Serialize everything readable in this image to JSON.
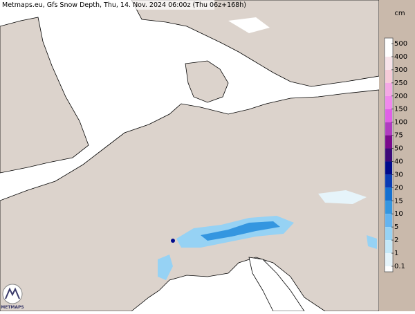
{
  "title": "Metmaps.eu, Gfs Snow Depth, Thu, 14. Nov. 2024 06:00z (Thu 06z+168h)",
  "logo": "METMAPS",
  "legend": {
    "unit": "cm",
    "levels": [
      {
        "label": "500",
        "color": "#ffffff"
      },
      {
        "label": "400",
        "color": "#f8e4ea"
      },
      {
        "label": "300",
        "color": "#f6cbd8"
      },
      {
        "label": "250",
        "color": "#f4a8e4"
      },
      {
        "label": "200",
        "color": "#f088ec"
      },
      {
        "label": "150",
        "color": "#e060e6"
      },
      {
        "label": "100",
        "color": "#b03cc0"
      },
      {
        "label": "75",
        "color": "#7a0a8c"
      },
      {
        "label": "50",
        "color": "#3c0a78"
      },
      {
        "label": "40",
        "color": "#000a8c"
      },
      {
        "label": "30",
        "color": "#0a3cb4"
      },
      {
        "label": "20",
        "color": "#1470d0"
      },
      {
        "label": "15",
        "color": "#3496e0"
      },
      {
        "label": "10",
        "color": "#64b4f0"
      },
      {
        "label": "5",
        "color": "#96d2f4"
      },
      {
        "label": "2",
        "color": "#c4e8f8"
      },
      {
        "label": "1",
        "color": "#e6f4fa"
      },
      {
        "label": "0.1",
        "color": "#ffffff"
      }
    ]
  }
}
